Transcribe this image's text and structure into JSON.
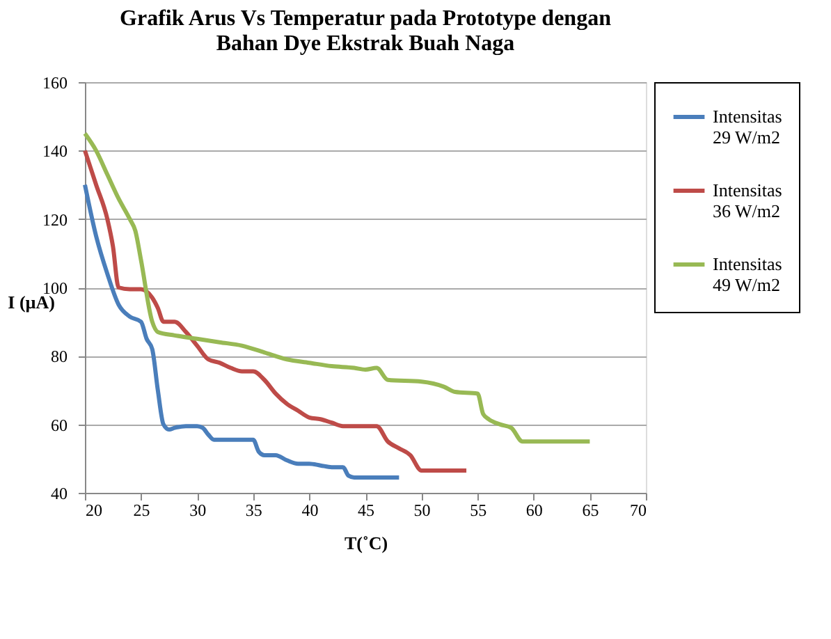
{
  "chart_data": {
    "type": "line",
    "title": [
      "Grafik Arus Vs Temperatur pada Prototype dengan",
      "Bahan Dye Ekstrak  Buah Naga"
    ],
    "xlabel": "T(˚C)",
    "ylabel": "I (µA)",
    "xlim": [
      20,
      70
    ],
    "xticks": [
      20,
      25,
      30,
      35,
      40,
      45,
      50,
      55,
      60,
      65,
      70
    ],
    "ylim": [
      40,
      160
    ],
    "yticks": [
      40,
      60,
      80,
      100,
      120,
      140,
      160
    ],
    "grid": "y",
    "legend": "right",
    "line_style": "solid",
    "marker": "none",
    "series": [
      {
        "name": "Intensitas 29 W/m2",
        "color": "#4a7ebb",
        "x": [
          20,
          21,
          22,
          23,
          24,
          25,
          25.5,
          26,
          26.5,
          27,
          27.5,
          28,
          29,
          30,
          30.5,
          31,
          31.5,
          33,
          35,
          35.5,
          36,
          37,
          38,
          39,
          40,
          41,
          42,
          43,
          43.5,
          44,
          48
        ],
        "values": [
          130,
          115,
          104,
          95,
          91.5,
          90,
          85,
          82,
          70,
          60,
          58.5,
          59,
          59.5,
          59.5,
          59,
          57,
          55.5,
          55.5,
          55.5,
          52,
          51,
          51,
          49.5,
          48.5,
          48.5,
          48,
          47.5,
          47.5,
          45,
          44.5,
          44.5
        ]
      },
      {
        "name": "Intensitas 36 W/m2",
        "color": "#be4b48",
        "x": [
          20,
          21,
          22,
          22.5,
          23,
          24,
          25,
          26,
          26.5,
          27,
          28,
          29,
          30,
          31,
          32,
          33,
          34,
          35,
          36,
          37,
          38,
          39,
          40,
          41,
          42,
          43,
          46,
          47,
          48,
          49,
          50,
          54
        ],
        "values": [
          140,
          130,
          120,
          112,
          100,
          99.5,
          99.5,
          97,
          94,
          90,
          90,
          87,
          83,
          79,
          78,
          76.5,
          75.5,
          75.5,
          73,
          69,
          66,
          64,
          62,
          61.5,
          60.5,
          59.5,
          59.5,
          55,
          53,
          51,
          46.5,
          46.5
        ]
      },
      {
        "name": "Intensitas 49 W/m2",
        "color": "#98b954",
        "x": [
          20,
          21,
          22,
          23,
          24,
          24.5,
          25,
          26,
          26.5,
          28,
          30,
          32,
          34,
          36,
          38,
          40,
          42,
          44,
          45,
          46,
          47,
          50,
          52,
          53,
          55,
          55.5,
          56,
          57,
          58,
          59,
          60,
          65
        ],
        "values": [
          145,
          140,
          133,
          126,
          120,
          116.5,
          108,
          90,
          87,
          86,
          85,
          84,
          83,
          81,
          79,
          78,
          77,
          76.5,
          76,
          76.5,
          73,
          72.5,
          71,
          69.5,
          69,
          63,
          61.5,
          60,
          59,
          55,
          55,
          55
        ]
      }
    ]
  }
}
